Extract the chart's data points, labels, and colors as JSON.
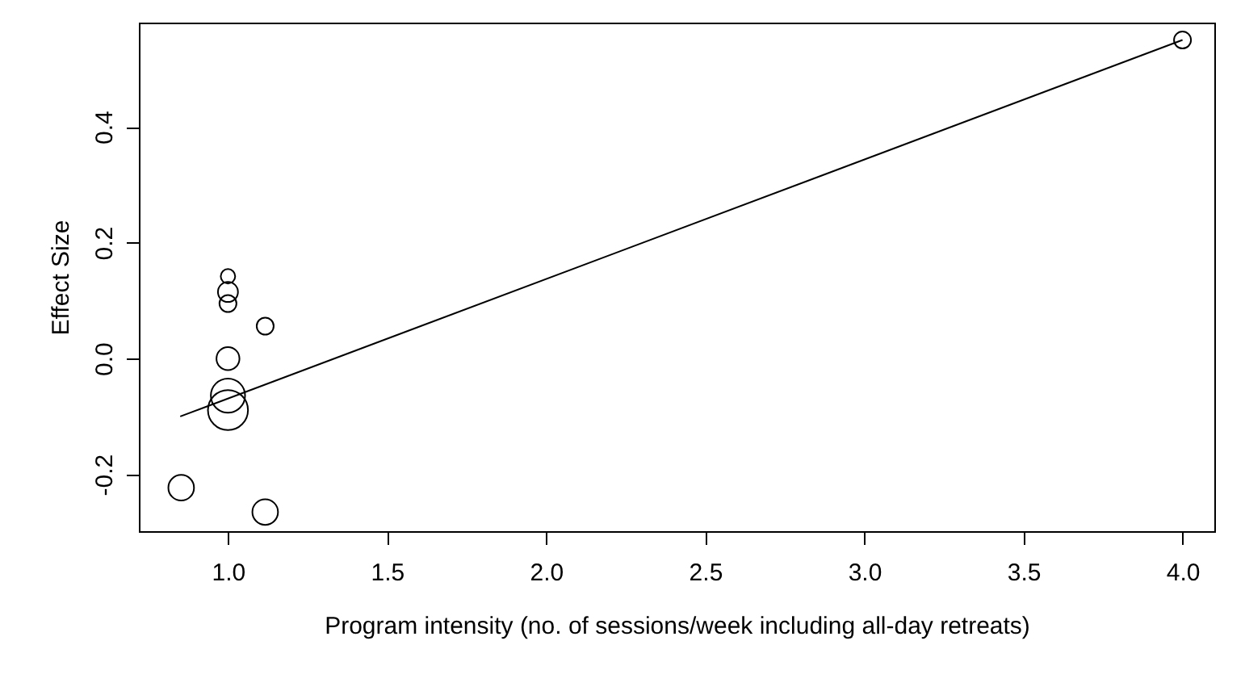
{
  "chart_data": {
    "type": "bubble",
    "xlabel": "Program intensity (no. of sessions/week including all-day retreats)",
    "ylabel": "Effect Size",
    "xlim": [
      0.72,
      4.1
    ],
    "xticks": [
      {
        "value": 1,
        "label": "1.0"
      },
      {
        "value": 1.5,
        "label": "1.5"
      },
      {
        "value": 2,
        "label": "2.0"
      },
      {
        "value": 2.5,
        "label": "2.5"
      },
      {
        "value": 3,
        "label": "3.0"
      },
      {
        "value": 3.5,
        "label": "3.5"
      },
      {
        "value": 4,
        "label": "4.0"
      }
    ],
    "ylim": [
      -0.298,
      0.58
    ],
    "yticks": [
      {
        "value": -0.2,
        "label": "-0.2"
      },
      {
        "value": 0,
        "label": "0.0"
      },
      {
        "value": 0.2,
        "label": "0.2"
      },
      {
        "value": 0.4,
        "label": "0.4"
      }
    ],
    "series": [
      {
        "color": "#000000",
        "x": [
          4.0,
          1.0,
          1.0,
          1.0,
          1.117,
          1.0,
          1.0,
          1.0,
          0.853,
          1.117
        ],
        "values": [
          0.55,
          0.142,
          0.115,
          0.095,
          0.056,
          0.0,
          -0.064,
          -0.089,
          -0.223,
          -0.265
        ],
        "sizes": [
          0.18,
          0.13,
          0.25,
          0.18,
          0.18,
          0.33,
          0.73,
          1,
          0.41,
          0.41
        ]
      },
      {
        "type": "line",
        "color": "#000000",
        "x": [
          0.85,
          4.0
        ],
        "values": [
          -0.1,
          0.55
        ]
      }
    ]
  }
}
